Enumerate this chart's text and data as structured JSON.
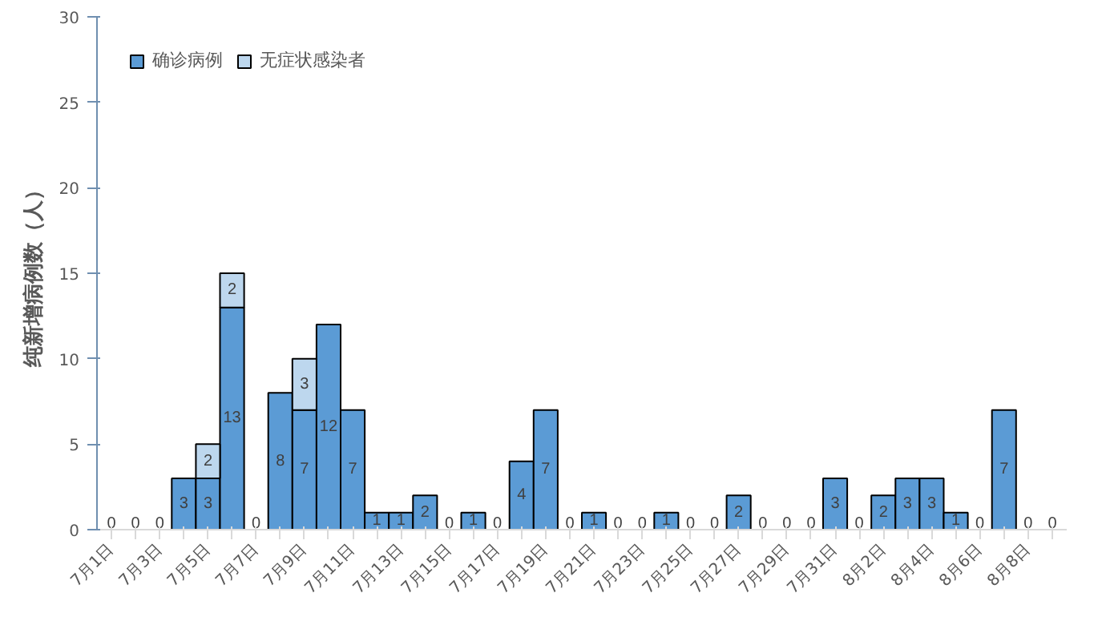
{
  "chart_data": {
    "type": "bar",
    "stacked": true,
    "ylabel": "纯新增病例数（人）",
    "categories": [
      "7月1日",
      null,
      "7月3日",
      null,
      "7月5日",
      null,
      "7月7日",
      null,
      "7月9日",
      null,
      "7月11日",
      null,
      "7月13日",
      null,
      "7月15日",
      null,
      "7月17日",
      null,
      "7月19日",
      null,
      "7月21日",
      null,
      "7月23日",
      null,
      "7月25日",
      null,
      "7月27日",
      null,
      "7月29日",
      null,
      "7月31日",
      null,
      "8月2日",
      null,
      "8月4日",
      null,
      "8月6日",
      null,
      "8月8日",
      null
    ],
    "series": [
      {
        "name": "确诊病例",
        "color": "#5b9bd5",
        "values": [
          0,
          0,
          0,
          3,
          3,
          13,
          0,
          8,
          7,
          12,
          7,
          1,
          1,
          2,
          0,
          1,
          0,
          4,
          7,
          0,
          1,
          0,
          0,
          1,
          0,
          0,
          2,
          0,
          0,
          0,
          3,
          0,
          2,
          3,
          3,
          1,
          0,
          7,
          0,
          0
        ],
        "value_labels": [
          "0",
          "0",
          "0",
          "3",
          "3",
          "13",
          "0",
          "8",
          "7",
          "12",
          "7",
          "1",
          "1",
          "2",
          "0",
          "1",
          "0",
          "4",
          "7",
          "0",
          "1",
          "0",
          "0",
          "1",
          "0",
          "0",
          "2",
          "0",
          "0",
          "0",
          "3",
          "0",
          "2",
          "3",
          "3",
          "1",
          "0",
          "7",
          "0",
          "0"
        ]
      },
      {
        "name": "无症状感染者",
        "color": "#bdd7ee",
        "values": [
          0,
          0,
          0,
          0,
          2,
          2,
          0,
          0,
          3,
          0,
          0,
          0,
          0,
          0,
          0,
          0,
          0,
          0,
          0,
          0,
          0,
          0,
          0,
          0,
          0,
          0,
          0,
          0,
          0,
          0,
          0,
          0,
          0,
          0,
          0,
          0,
          0,
          0,
          0,
          0
        ],
        "value_labels": [
          null,
          null,
          null,
          null,
          "2",
          "2",
          null,
          null,
          "3",
          null,
          null,
          null,
          null,
          null,
          null,
          null,
          null,
          null,
          null,
          null,
          null,
          null,
          null,
          null,
          null,
          null,
          null,
          null,
          null,
          null,
          null,
          null,
          null,
          null,
          null,
          null,
          null,
          null,
          null,
          null
        ]
      }
    ],
    "ylim": [
      0,
      30
    ],
    "yticks": [
      0,
      5,
      10,
      15,
      20,
      25,
      30
    ],
    "grid": false,
    "legend": "top left"
  }
}
